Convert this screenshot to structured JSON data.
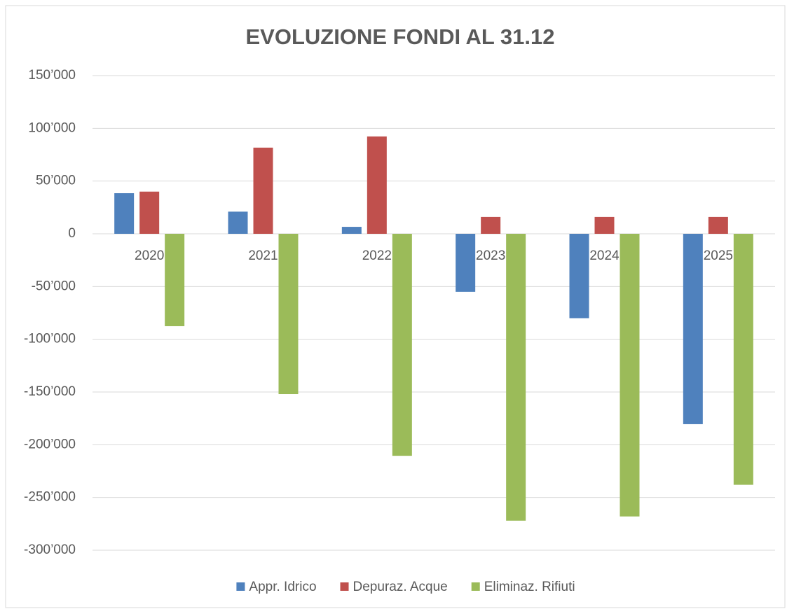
{
  "chart_data": {
    "type": "bar",
    "title": "EVOLUZIONE FONDI AL 31.12",
    "categories": [
      "2020",
      "2021",
      "2022",
      "2023",
      "2024",
      "2025"
    ],
    "series": [
      {
        "name": "Appr. Idrico",
        "color": "#4f81bd",
        "values": [
          38500,
          21000,
          6600,
          -55000,
          -80000,
          -180500
        ]
      },
      {
        "name": "Depuraz. Acque",
        "color": "#c0504d",
        "values": [
          40000,
          81700,
          92300,
          16000,
          16000,
          16000
        ]
      },
      {
        "name": "Eliminaz. Rifiuti",
        "color": "#9bbb59",
        "values": [
          -87600,
          -152000,
          -210500,
          -272000,
          -268000,
          -238000
        ]
      }
    ],
    "ylim": [
      -300000,
      150000
    ],
    "yticks": [
      {
        "value": -300000,
        "label": "-300’000"
      },
      {
        "value": -250000,
        "label": "-250’000"
      },
      {
        "value": -200000,
        "label": "-200’000"
      },
      {
        "value": -150000,
        "label": "-150’000"
      },
      {
        "value": -100000,
        "label": "-100’000"
      },
      {
        "value": -50000,
        "label": "-50’000"
      },
      0,
      {
        "value": 50000,
        "label": "50’000"
      },
      {
        "value": 100000,
        "label": "100’000"
      },
      {
        "value": 150000,
        "label": "150’000"
      }
    ],
    "grid": true,
    "legend": "bottom"
  }
}
